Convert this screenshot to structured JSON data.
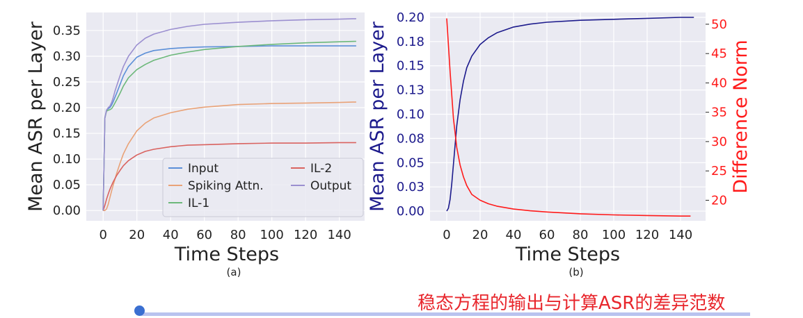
{
  "caption": "稳态方程的输出与计算ASR的差异范数",
  "slider": {
    "value": 0
  },
  "colors": {
    "Input": "#5b8fd8",
    "Spiking Attn.": "#e9a277",
    "IL-1": "#6cb87a",
    "IL-2": "#d9625f",
    "Output": "#9b8fd0",
    "asr": "#1c1a8c",
    "diff": "#ff1a1a",
    "caption": "#e8262c"
  },
  "chart_data": [
    {
      "type": "line",
      "subtitle": "(a)",
      "xlabel": "Time Steps",
      "ylabel": "Mean ASR per Layer",
      "xlim": [
        -10,
        155
      ],
      "ylim": [
        -0.02,
        0.385
      ],
      "xticks": [
        0,
        20,
        40,
        60,
        80,
        100,
        120,
        140
      ],
      "xtick_labels": [
        "0",
        "20",
        "40",
        "60",
        "80",
        "100",
        "120",
        "140"
      ],
      "yticks": [
        0,
        0.05,
        0.1,
        0.15,
        0.2,
        0.25,
        0.3,
        0.35
      ],
      "ytick_labels": [
        "0.00",
        "0.05",
        "0.10",
        "0.15",
        "0.20",
        "0.25",
        "0.30",
        "0.35"
      ],
      "grid": true,
      "legend_position": "lower-right",
      "series": [
        {
          "name": "Input",
          "x": [
            0,
            1,
            2,
            3,
            4,
            5,
            6,
            7,
            8,
            10,
            12,
            15,
            20,
            25,
            30,
            40,
            50,
            60,
            80,
            100,
            120,
            140,
            150
          ],
          "y": [
            0,
            0.18,
            0.195,
            0.198,
            0.2,
            0.205,
            0.212,
            0.22,
            0.228,
            0.245,
            0.262,
            0.28,
            0.298,
            0.306,
            0.311,
            0.315,
            0.317,
            0.318,
            0.319,
            0.32,
            0.32,
            0.32,
            0.32
          ]
        },
        {
          "name": "Spiking Attn.",
          "x": [
            0,
            1,
            2,
            3,
            4,
            5,
            6,
            8,
            10,
            12,
            15,
            20,
            25,
            30,
            40,
            50,
            60,
            80,
            100,
            120,
            140,
            150
          ],
          "y": [
            0,
            0,
            0.003,
            0.012,
            0.025,
            0.038,
            0.05,
            0.072,
            0.092,
            0.11,
            0.13,
            0.155,
            0.17,
            0.18,
            0.19,
            0.197,
            0.201,
            0.206,
            0.208,
            0.209,
            0.21,
            0.211
          ]
        },
        {
          "name": "IL-1",
          "x": [
            0,
            1,
            2,
            3,
            4,
            5,
            6,
            8,
            10,
            12,
            15,
            20,
            25,
            30,
            40,
            50,
            60,
            80,
            100,
            120,
            140,
            150
          ],
          "y": [
            0,
            0.18,
            0.193,
            0.195,
            0.196,
            0.198,
            0.203,
            0.215,
            0.228,
            0.242,
            0.258,
            0.274,
            0.284,
            0.292,
            0.302,
            0.308,
            0.313,
            0.319,
            0.323,
            0.326,
            0.328,
            0.329
          ]
        },
        {
          "name": "IL-2",
          "x": [
            0,
            1,
            2,
            3,
            4,
            5,
            6,
            8,
            10,
            12,
            15,
            20,
            25,
            30,
            40,
            50,
            60,
            80,
            100,
            120,
            140,
            150
          ],
          "y": [
            0,
            0.01,
            0.022,
            0.032,
            0.041,
            0.049,
            0.056,
            0.068,
            0.078,
            0.087,
            0.097,
            0.108,
            0.115,
            0.119,
            0.124,
            0.127,
            0.128,
            0.13,
            0.131,
            0.131,
            0.132,
            0.132
          ]
        },
        {
          "name": "Output",
          "x": [
            0,
            1,
            2,
            3,
            4,
            5,
            6,
            7,
            8,
            10,
            12,
            15,
            20,
            25,
            30,
            40,
            50,
            60,
            80,
            100,
            120,
            140,
            150
          ],
          "y": [
            0,
            0.18,
            0.195,
            0.2,
            0.203,
            0.21,
            0.22,
            0.232,
            0.242,
            0.262,
            0.28,
            0.3,
            0.322,
            0.335,
            0.343,
            0.352,
            0.358,
            0.362,
            0.366,
            0.369,
            0.371,
            0.372,
            0.373
          ]
        }
      ]
    },
    {
      "type": "line",
      "subtitle": "(b)",
      "xlabel": "Time Steps",
      "ylabel": "Mean ASR per Layer",
      "y2label": "Difference Norm",
      "xlim": [
        -10,
        155
      ],
      "ylim": [
        -0.01,
        0.205
      ],
      "y2lim": [
        16.5,
        52
      ],
      "xticks": [
        0,
        20,
        40,
        60,
        80,
        100,
        120,
        140
      ],
      "xtick_labels": [
        "0",
        "20",
        "40",
        "60",
        "80",
        "100",
        "120",
        "140"
      ],
      "yticks": [
        0,
        0.025,
        0.05,
        0.075,
        0.1,
        0.125,
        0.15,
        0.175,
        0.2
      ],
      "ytick_labels": [
        "0.00",
        "0.03",
        "0.05",
        "0.08",
        "0.10",
        "0.13",
        "0.15",
        "0.18",
        "0.20"
      ],
      "y2ticks": [
        20,
        25,
        30,
        35,
        40,
        45,
        50
      ],
      "y2tick_labels": [
        "20",
        "25",
        "30",
        "35",
        "40",
        "45",
        "50"
      ],
      "grid": true,
      "series": [
        {
          "name": "Mean ASR per Layer",
          "axis": "left",
          "x": [
            0,
            1,
            2,
            3,
            4,
            5,
            6,
            8,
            10,
            12,
            15,
            20,
            25,
            30,
            40,
            50,
            60,
            80,
            100,
            120,
            140,
            148
          ],
          "y": [
            0,
            0.003,
            0.012,
            0.028,
            0.048,
            0.068,
            0.088,
            0.115,
            0.134,
            0.148,
            0.16,
            0.172,
            0.179,
            0.184,
            0.19,
            0.193,
            0.195,
            0.197,
            0.198,
            0.199,
            0.2,
            0.2
          ]
        },
        {
          "name": "Difference Norm",
          "axis": "right",
          "x": [
            0,
            2,
            4,
            6,
            8,
            10,
            12,
            15,
            20,
            25,
            30,
            40,
            50,
            60,
            80,
            100,
            120,
            140,
            146
          ],
          "y": [
            51,
            42,
            34,
            29,
            26,
            24,
            22.5,
            21,
            20,
            19.4,
            19,
            18.5,
            18.2,
            18,
            17.7,
            17.5,
            17.4,
            17.3,
            17.3
          ]
        }
      ]
    }
  ]
}
